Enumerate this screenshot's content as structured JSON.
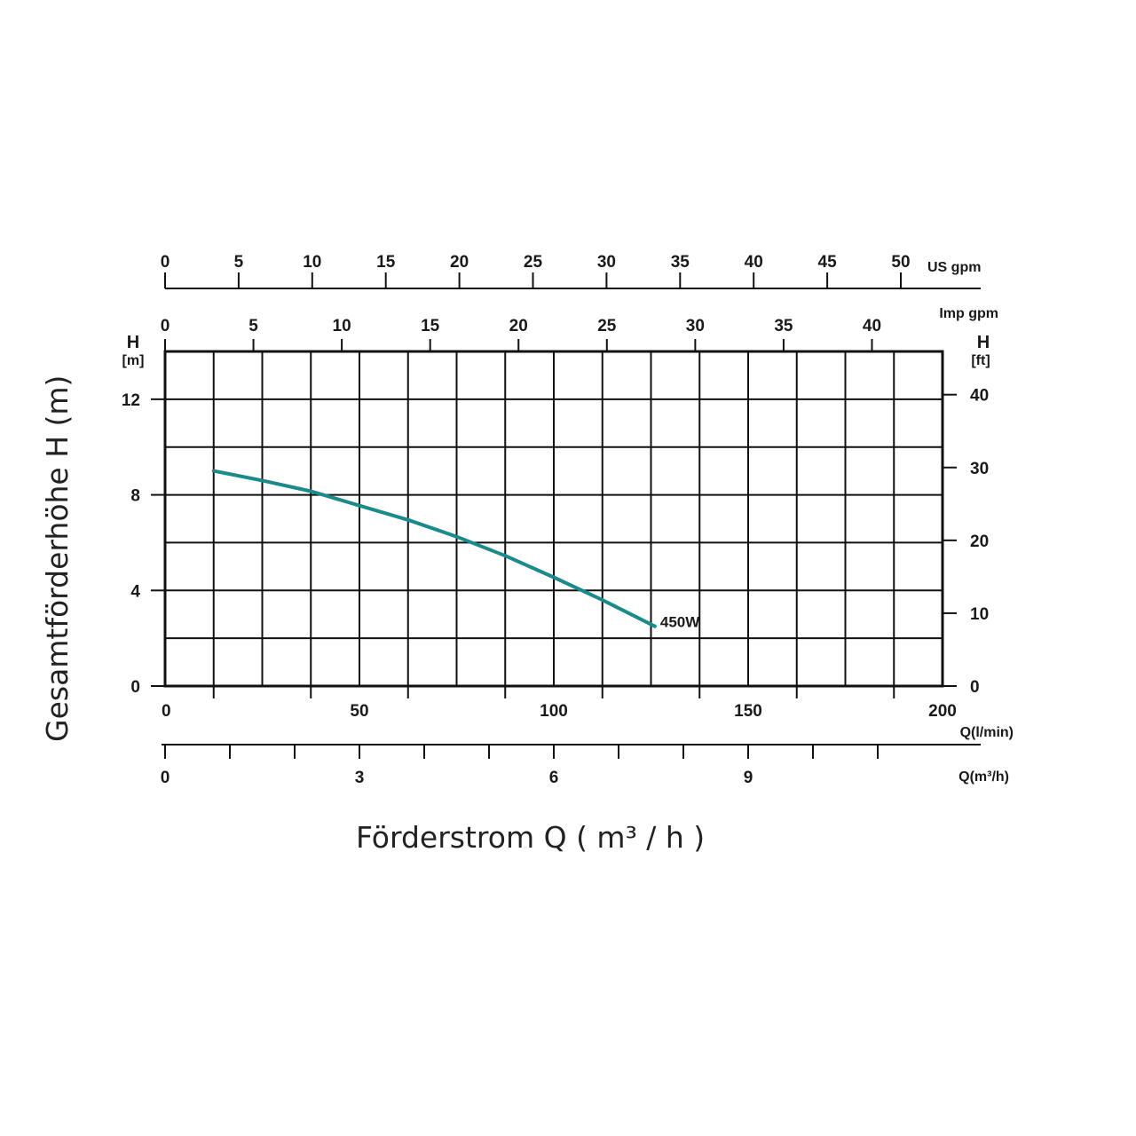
{
  "chart_data": {
    "type": "line",
    "title": "",
    "xlabel": "Förderstrom Q ( m³ / h )",
    "ylabel": "Gesamtförderhöhe  H (m)",
    "x_unit_label": "Q(l/min)",
    "xlim": [
      0,
      200
    ],
    "x_ticks": [
      "0",
      "50",
      "100",
      "150",
      "200"
    ],
    "y_unit_top": "H",
    "y_unit_bottom": "[m]",
    "ylim": [
      0,
      14
    ],
    "y_ticks": [
      "0",
      "4",
      "8",
      "12"
    ],
    "grid": true,
    "series": [
      {
        "name": "450W",
        "color": "#1a8a8a",
        "x": [
          12.5,
          25,
          37.5,
          50,
          62.5,
          75,
          87.5,
          100,
          112.5,
          126
        ],
        "y": [
          9.0,
          8.6,
          8.15,
          7.55,
          6.95,
          6.25,
          5.45,
          4.55,
          3.6,
          2.5
        ]
      }
    ],
    "secondary_axes": {
      "us_gpm": {
        "label": "US gpm",
        "ticks": [
          "0",
          "5",
          "10",
          "15",
          "20",
          "25",
          "30",
          "35",
          "40",
          "45",
          "50"
        ]
      },
      "imp_gpm": {
        "label": "Imp gpm",
        "ticks": [
          "0",
          "5",
          "10",
          "15",
          "20",
          "25",
          "30",
          "35",
          "40"
        ]
      },
      "feet": {
        "unit_top": "H",
        "unit_bottom": "[ft]",
        "ticks": [
          "0",
          "10",
          "20",
          "30",
          "40"
        ]
      },
      "m3h": {
        "label": "Q(m³/h)",
        "ticks": [
          "0",
          "3",
          "6",
          "9"
        ]
      }
    }
  }
}
